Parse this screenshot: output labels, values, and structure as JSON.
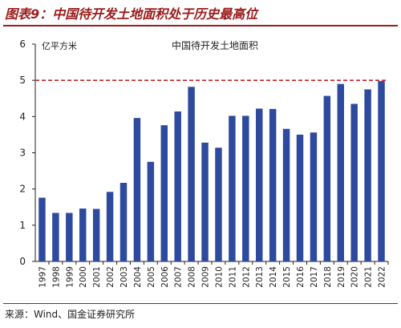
{
  "figure_title": "图表9：中国待开发土地面积处于历史最高位",
  "source": "来源：Wind、国金证券研究所",
  "colors": {
    "title": "#9b1b1b",
    "bar": "#2e4a9e",
    "reference_line": "#c0282d"
  },
  "chart_data": {
    "type": "bar",
    "title": "中国待开发土地面积",
    "ylabel": "亿平方米",
    "xlabel": "",
    "categories": [
      "1997",
      "1998",
      "1999",
      "2000",
      "2001",
      "2002",
      "2003",
      "2004",
      "2005",
      "2006",
      "2007",
      "2008",
      "2009",
      "2010",
      "2011",
      "2012",
      "2013",
      "2014",
      "2015",
      "2016",
      "2017",
      "2018",
      "2019",
      "2020",
      "2021",
      "2022"
    ],
    "values": [
      1.76,
      1.34,
      1.34,
      1.46,
      1.45,
      1.92,
      2.17,
      3.96,
      2.75,
      3.76,
      4.14,
      4.82,
      3.28,
      3.14,
      4.02,
      4.02,
      4.22,
      4.21,
      3.66,
      3.5,
      3.56,
      4.57,
      4.9,
      4.35,
      4.75,
      4.98
    ],
    "ylim": [
      0,
      6
    ],
    "yticks": [
      "0",
      "1",
      "2",
      "3",
      "4",
      "5",
      "6"
    ],
    "reference_line": 5,
    "grid": false
  }
}
